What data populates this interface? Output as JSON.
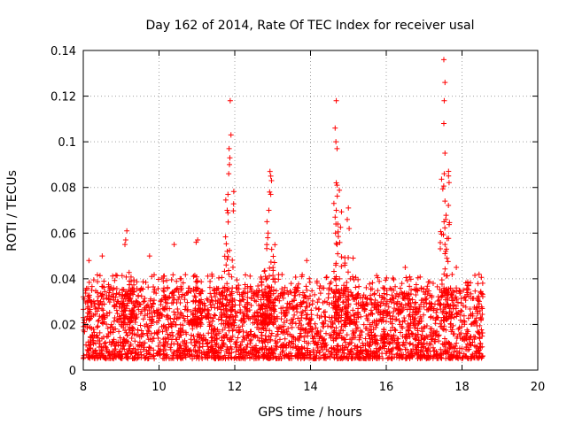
{
  "chart_data": {
    "type": "scatter",
    "title": "Day 162 of 2014, Rate Of TEC Index for receiver usal",
    "xlabel": "GPS time / hours",
    "ylabel": "ROTI / TECUs",
    "xlim": [
      8,
      20
    ],
    "ylim": [
      0,
      0.14
    ],
    "xticks": [
      "8",
      "10",
      "12",
      "14",
      "16",
      "18",
      "20"
    ],
    "yticks": [
      "0",
      "0.02",
      "0.04",
      "0.06",
      "0.08",
      "0.1",
      "0.12",
      "0.14"
    ],
    "grid": true,
    "marker": "+",
    "color": "#ff0000",
    "data_range_x": [
      8.0,
      18.55
    ],
    "baseline_band": [
      0.005,
      0.03
    ],
    "spikes": [
      {
        "x": 11.85,
        "ymax": 0.118
      },
      {
        "x": 12.95,
        "ymax": 0.087
      },
      {
        "x": 14.7,
        "ymax": 0.118
      },
      {
        "x": 15.0,
        "ymax": 0.071
      },
      {
        "x": 17.55,
        "ymax": 0.136
      },
      {
        "x": 9.15,
        "ymax": 0.061
      },
      {
        "x": 11.0,
        "ymax": 0.057
      },
      {
        "x": 12.8,
        "ymax": 0.06
      }
    ],
    "sample_points": [
      {
        "x": 11.88,
        "y": 0.118
      },
      {
        "x": 11.9,
        "y": 0.103
      },
      {
        "x": 11.85,
        "y": 0.097
      },
      {
        "x": 11.87,
        "y": 0.093
      },
      {
        "x": 11.86,
        "y": 0.09
      },
      {
        "x": 11.84,
        "y": 0.086
      },
      {
        "x": 11.82,
        "y": 0.077
      },
      {
        "x": 11.8,
        "y": 0.07
      },
      {
        "x": 11.8,
        "y": 0.052
      },
      {
        "x": 12.93,
        "y": 0.087
      },
      {
        "x": 12.95,
        "y": 0.085
      },
      {
        "x": 12.97,
        "y": 0.083
      },
      {
        "x": 12.92,
        "y": 0.078
      },
      {
        "x": 12.95,
        "y": 0.077
      },
      {
        "x": 12.9,
        "y": 0.07
      },
      {
        "x": 12.85,
        "y": 0.065
      },
      {
        "x": 12.88,
        "y": 0.06
      },
      {
        "x": 12.87,
        "y": 0.058
      },
      {
        "x": 14.68,
        "y": 0.118
      },
      {
        "x": 14.65,
        "y": 0.106
      },
      {
        "x": 14.67,
        "y": 0.1
      },
      {
        "x": 14.7,
        "y": 0.097
      },
      {
        "x": 14.68,
        "y": 0.082
      },
      {
        "x": 14.7,
        "y": 0.081
      },
      {
        "x": 14.68,
        "y": 0.07
      },
      {
        "x": 14.65,
        "y": 0.067
      },
      {
        "x": 14.72,
        "y": 0.064
      },
      {
        "x": 14.66,
        "y": 0.06
      },
      {
        "x": 14.7,
        "y": 0.055
      },
      {
        "x": 15.0,
        "y": 0.071
      },
      {
        "x": 14.97,
        "y": 0.066
      },
      {
        "x": 15.02,
        "y": 0.062
      },
      {
        "x": 17.52,
        "y": 0.136
      },
      {
        "x": 17.55,
        "y": 0.126
      },
      {
        "x": 17.53,
        "y": 0.118
      },
      {
        "x": 17.52,
        "y": 0.108
      },
      {
        "x": 17.55,
        "y": 0.095
      },
      {
        "x": 17.53,
        "y": 0.086
      },
      {
        "x": 17.55,
        "y": 0.074
      },
      {
        "x": 17.57,
        "y": 0.066
      },
      {
        "x": 17.55,
        "y": 0.055
      },
      {
        "x": 17.57,
        "y": 0.052
      },
      {
        "x": 17.6,
        "y": 0.049
      },
      {
        "x": 17.85,
        "y": 0.045
      },
      {
        "x": 9.15,
        "y": 0.061
      },
      {
        "x": 9.12,
        "y": 0.057
      },
      {
        "x": 9.1,
        "y": 0.055
      },
      {
        "x": 11.02,
        "y": 0.057
      },
      {
        "x": 10.98,
        "y": 0.056
      },
      {
        "x": 10.4,
        "y": 0.055
      },
      {
        "x": 9.75,
        "y": 0.05
      },
      {
        "x": 8.5,
        "y": 0.05
      },
      {
        "x": 8.15,
        "y": 0.048
      },
      {
        "x": 13.9,
        "y": 0.048
      },
      {
        "x": 16.5,
        "y": 0.045
      },
      {
        "x": 18.45,
        "y": 0.042
      }
    ]
  }
}
